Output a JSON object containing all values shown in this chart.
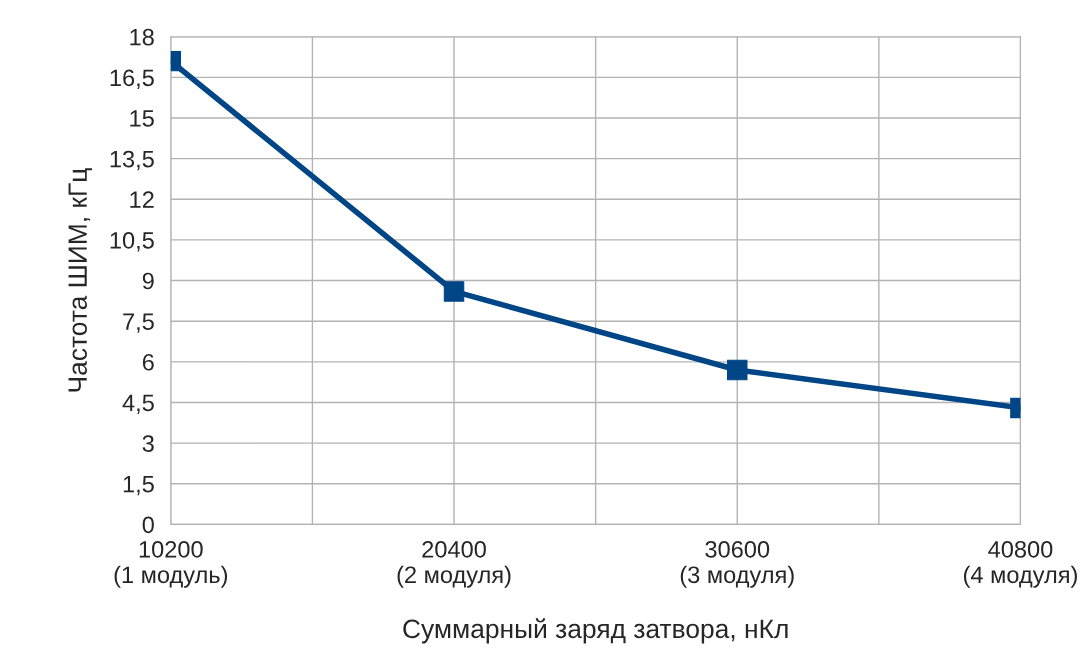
{
  "chart_data": {
    "type": "line",
    "xlabel": "Суммарный заряд затвора, нКл",
    "ylabel": "Частота ШИМ, кГц",
    "categories": [
      "10200\n(1 модуль)",
      "20400\n(2 модуля)",
      "30600\n(3 модуля)",
      "40800\n(4 модуля)"
    ],
    "series": [
      {
        "color": "#004586",
        "values": [
          17.1,
          8.6,
          5.7,
          4.3
        ]
      }
    ],
    "ylim": [
      0,
      18
    ],
    "yticks": [
      0,
      {
        "value": 1.5,
        "label": "1,5"
      },
      3,
      {
        "value": 4.5,
        "label": "4,5"
      },
      6,
      {
        "value": 7.5,
        "label": "7,5"
      },
      9,
      {
        "value": 10.5,
        "label": "10,5"
      },
      12,
      {
        "value": 13.5,
        "label": "13,5"
      },
      15,
      {
        "value": 16.5,
        "label": "16,5"
      },
      18
    ],
    "grid": true,
    "marker": "square",
    "line_style": "solid"
  }
}
